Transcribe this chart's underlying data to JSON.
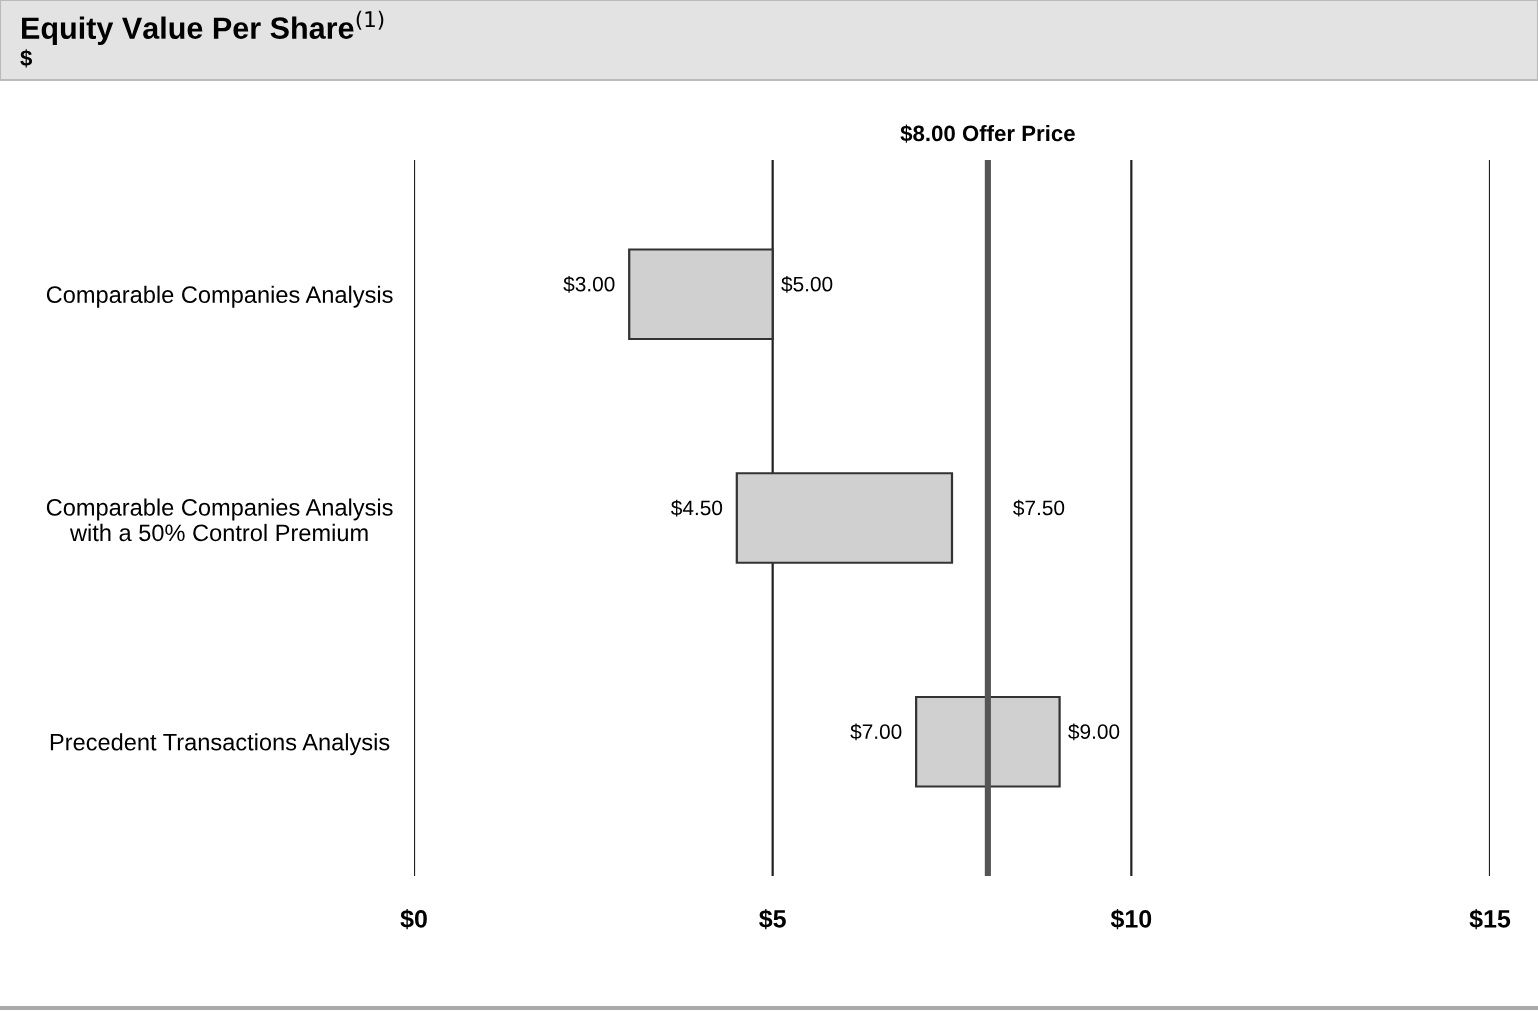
{
  "chart_data": {
    "type": "bar",
    "orientation": "horizontal",
    "title": "Equity Value Per Share$^{(1)}$",
    "subtitle": "$",
    "categories": [
      "Comparable Companies Analysis",
      "Comparable Companies Analysis\nwith a 50% Control Premium",
      "Precedent Transactions Analysis"
    ],
    "base": [
      3,
      4.5,
      7
    ],
    "values": [
      2,
      3,
      2
    ],
    "color": "#d0d0d0",
    "xlim": [
      0,
      15
    ],
    "xticks": [
      {
        "value": 0,
        "label": "$0"
      },
      {
        "value": 5,
        "label": "$5"
      },
      {
        "value": 10,
        "label": "$10"
      },
      {
        "value": 15,
        "label": "$15"
      }
    ],
    "grid": "x",
    "ref_lines": [
      {
        "axis": "x",
        "value": 8,
        "label": "$8.00 Offer Price",
        "color": "#555555"
      }
    ],
    "annotations": [
      {
        "text": "$3.00",
        "x": 3,
        "y": "Comparable Companies Analysis"
      },
      {
        "text": "$5.00",
        "x": 5,
        "y": "Comparable Companies Analysis"
      },
      {
        "text": "$4.50",
        "x": 4.5,
        "y": "Comparable Companies Analysis\nwith a 50% Control Premium"
      },
      {
        "text": "$7.50",
        "x": 7.5,
        "y": "Comparable Companies Analysis\nwith a 50% Control Premium"
      },
      {
        "text": "$7.00",
        "x": 7,
        "y": "Precedent Transactions Analysis"
      },
      {
        "text": "$9.00",
        "x": 9,
        "y": "Precedent Transactions Analysis"
      }
    ]
  }
}
